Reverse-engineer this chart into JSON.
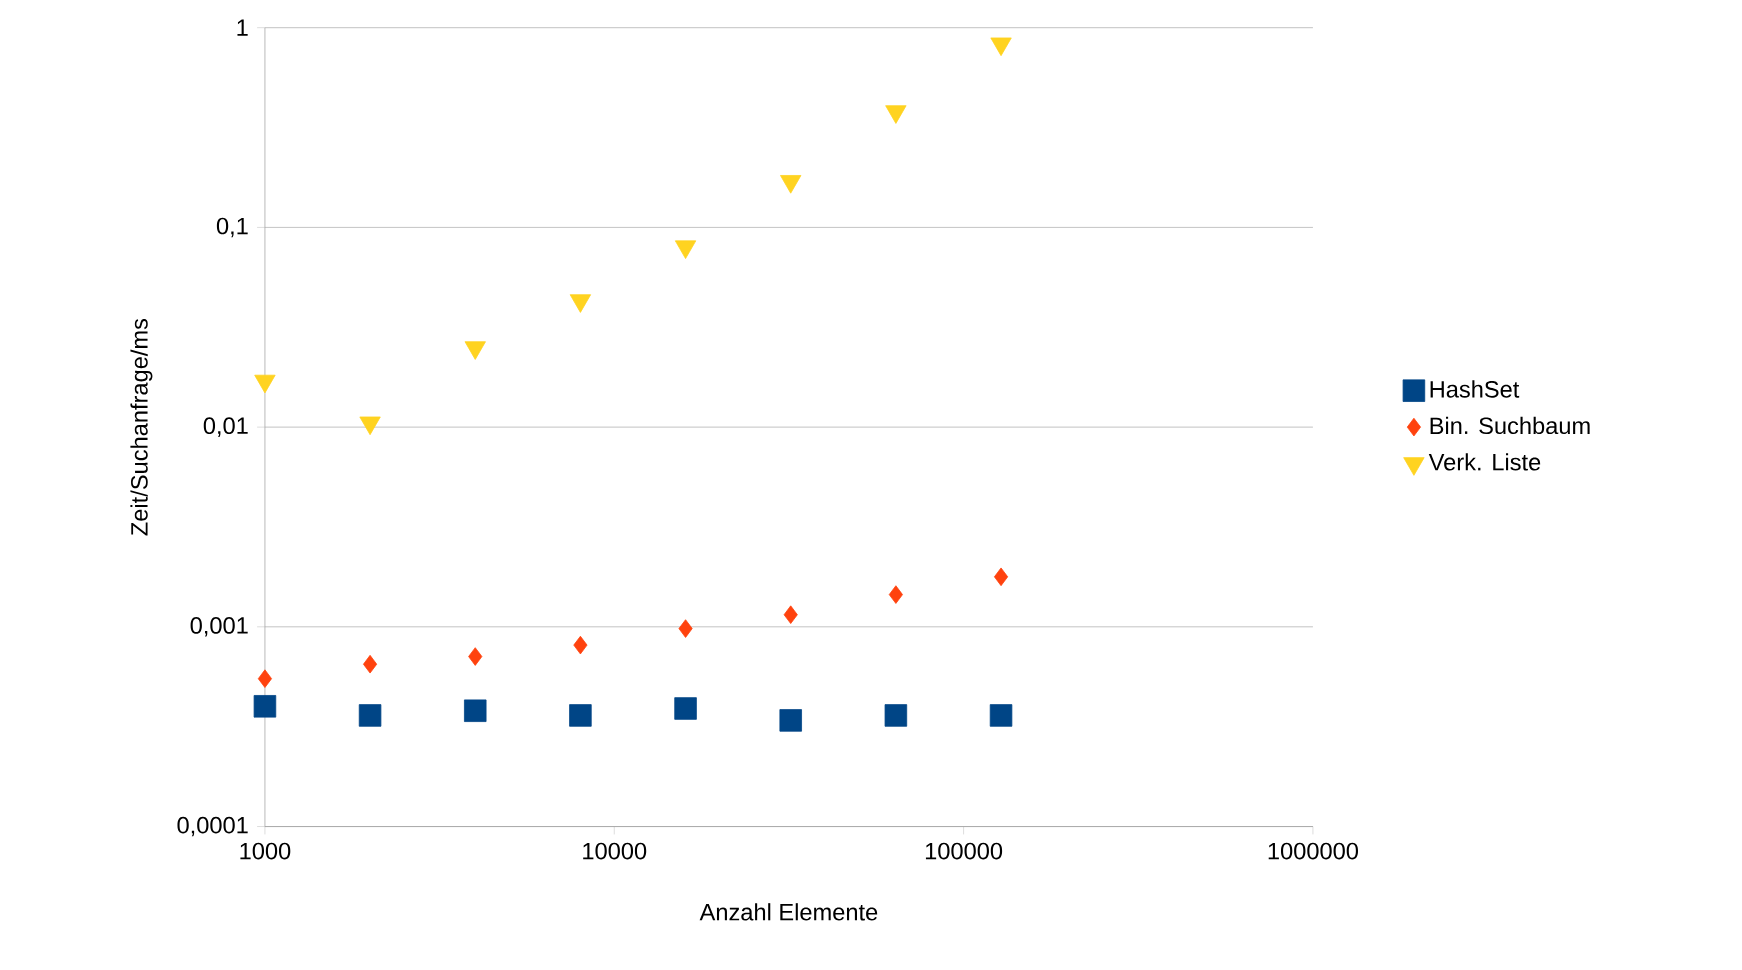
{
  "chart_data": {
    "type": "scatter",
    "xlabel": "Anzahl Elemente",
    "ylabel": "Zeit/Suchanfrage/ms",
    "x": [
      1000,
      2000,
      4000,
      8000,
      16000,
      32000,
      64000,
      128000
    ],
    "series": [
      {
        "name": "HashSet",
        "color": "#004586",
        "marker": "square",
        "values": [
          0.0004,
          0.00036,
          0.00038,
          0.00036,
          0.00039,
          0.00034,
          0.00036,
          0.00036
        ]
      },
      {
        "name": "Bin. Suchbaum",
        "color": "#ff420e",
        "marker": "diamond",
        "values": [
          0.00055,
          0.00065,
          0.00071,
          0.00081,
          0.00098,
          0.00115,
          0.00145,
          0.00178
        ]
      },
      {
        "name": "Verk. Liste",
        "color": "#ffd320",
        "marker": "triangle",
        "values": [
          0.017,
          0.0105,
          0.025,
          0.043,
          0.08,
          0.17,
          0.38,
          0.83
        ]
      }
    ],
    "log": "xy",
    "xlim": [
      1000,
      1000000
    ],
    "ylim": [
      0.0001,
      1
    ],
    "xticks": [
      1000,
      10000,
      100000,
      1000000
    ],
    "yticks": [
      {
        "value": 0.0001,
        "label": "0,0001"
      },
      {
        "value": 0.001,
        "label": "0,001"
      },
      {
        "value": 0.01,
        "label": "0,01"
      },
      {
        "value": 0.1,
        "label": "0,1"
      },
      {
        "value": 1,
        "label": "1"
      }
    ],
    "grid": "y",
    "legend": "right"
  }
}
